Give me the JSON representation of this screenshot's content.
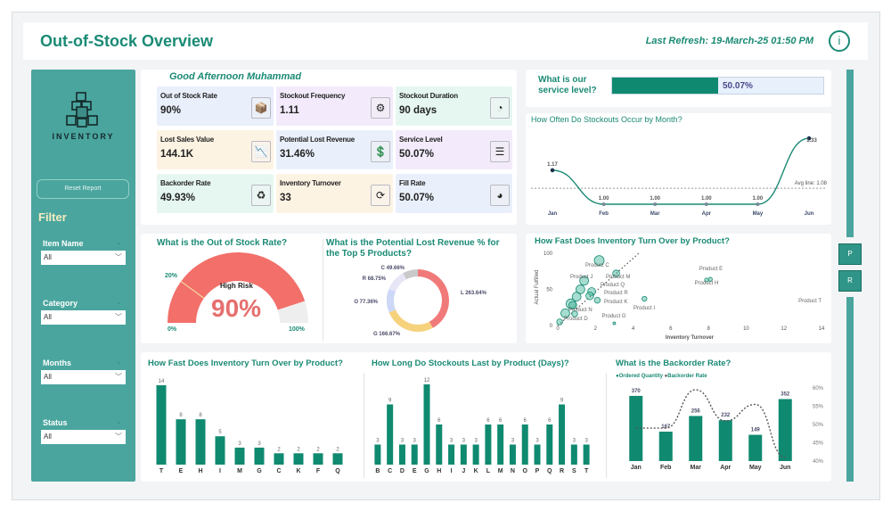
{
  "header": {
    "title": "Out-of-Stock Overview",
    "last_refresh": "Last Refresh: 19-March-25 01:50 PM",
    "info_icon": "i"
  },
  "sidebar": {
    "logo_text": "INVENTORY",
    "reset_label": "Reset Report",
    "filter_heading": "Filter",
    "filters": [
      {
        "label": "Item Name",
        "value": "All"
      },
      {
        "label": "Category",
        "value": "All"
      },
      {
        "label": "Months",
        "value": "All"
      },
      {
        "label": "Status",
        "value": "All"
      }
    ]
  },
  "greeting": "Good Afternoon Muhammad",
  "kpis": [
    {
      "label": "Out of Stock Rate",
      "value": "90%",
      "icon": "box-check-icon",
      "bg": "#e9effb"
    },
    {
      "label": "Stockout Frequency",
      "value": "1.11",
      "icon": "box-gear-icon",
      "bg": "#f3ebfb"
    },
    {
      "label": "Stockout Duration",
      "value": "90 days",
      "icon": "clock-refresh-icon",
      "bg": "#e6f7f1"
    },
    {
      "label": "Lost Sales Value",
      "value": "144.1K",
      "icon": "chart-down-icon",
      "bg": "#fdf3e3"
    },
    {
      "label": "Potential Lost Revenue",
      "value": "31.46%",
      "icon": "money-down-icon",
      "bg": "#eaf0fb"
    },
    {
      "label": "Service Level",
      "value": "50.07%",
      "icon": "layers-icon",
      "bg": "#f3ebfb"
    },
    {
      "label": "Backorder Rate",
      "value": "49.93%",
      "icon": "box-cycle-icon",
      "bg": "#e6f7f1"
    },
    {
      "label": "Inventory Turnover",
      "value": "33",
      "icon": "box-rotate-icon",
      "bg": "#fdf3e3"
    },
    {
      "label": "Fill Rate",
      "value": "50.07%",
      "icon": "pie-chart-icon",
      "bg": "#eaf0fb"
    }
  ],
  "service_level": {
    "title": "What is our service level?",
    "value": "50.07%",
    "fraction": 0.5007
  },
  "right_buttons": [
    "P",
    "R"
  ],
  "chart_data": [
    {
      "type": "line",
      "title": "How Often Do Stockouts Occur by Month?",
      "categories": [
        "Jan",
        "Feb",
        "Mar",
        "Apr",
        "May",
        "Jun"
      ],
      "values": [
        1.17,
        1.0,
        1.0,
        1.0,
        1.0,
        1.33
      ],
      "labels": [
        "1.17",
        "1.00",
        "1.00",
        "1.00",
        "1.00",
        "1.33"
      ],
      "avg_line": 1.08,
      "avg_label": "Avg line: 1.08",
      "color": "#1a8a74"
    },
    {
      "type": "gauge",
      "title": "What is the Out of Stock Rate?",
      "value": 90,
      "value_label": "90%",
      "status": "High Risk",
      "min_label": "0%",
      "max_label": "100%",
      "threshold": 20,
      "threshold_label": "20%",
      "color": "#f26f6a"
    },
    {
      "type": "pie",
      "title": "What is the Potential Lost Revenue % for the Top 5 Products?",
      "slices": [
        {
          "label": "L",
          "value": 263.64,
          "text": "L 263.64%",
          "color": "#f07a79"
        },
        {
          "label": "G",
          "value": 166.67,
          "text": "G 166.67%",
          "color": "#f6d27c"
        },
        {
          "label": "O",
          "value": 77.36,
          "text": "O 77.36%",
          "color": "#ccd8f6"
        },
        {
          "label": "R",
          "value": 68.75,
          "text": "R 68.75%",
          "color": "#e6e6f6"
        },
        {
          "label": "C",
          "value": 49.66,
          "text": "C 49.66%",
          "color": "#c9c9c9"
        }
      ]
    },
    {
      "type": "scatter",
      "title": "How Fast Does Inventory Turn Over by Product?",
      "xlabel": "Inventory Turnover",
      "ylabel": "Actual Fulfilled",
      "xlim": [
        0,
        14
      ],
      "ylim": [
        0,
        100
      ],
      "xticks": [
        0,
        2,
        4,
        6,
        8,
        10,
        12,
        14
      ],
      "yticks": [
        0,
        50,
        100
      ],
      "points": [
        {
          "label": "Product C",
          "x": 2.2,
          "y": 90,
          "size": 10
        },
        {
          "label": "Product M",
          "x": 3.1,
          "y": 72,
          "size": 7
        },
        {
          "label": "Product J",
          "x": 1.4,
          "y": 62,
          "size": 9
        },
        {
          "label": "Product P",
          "x": 1.2,
          "y": 50,
          "size": 9
        },
        {
          "label": "Product Q",
          "x": 1.8,
          "y": 47,
          "size": 8
        },
        {
          "label": "Product R",
          "x": 1.7,
          "y": 41,
          "size": 8
        },
        {
          "label": "Product K",
          "x": 2.1,
          "y": 35,
          "size": 6
        },
        {
          "label": "Product I",
          "x": 4.6,
          "y": 37,
          "size": 5
        },
        {
          "label": "Product E",
          "x": 8.1,
          "y": 64,
          "size": 4
        },
        {
          "label": "Product H",
          "x": 7.9,
          "y": 63,
          "size": 4
        },
        {
          "label": "Product O",
          "x": 1.0,
          "y": 40,
          "size": 9
        },
        {
          "label": "Product L",
          "x": 0.7,
          "y": 30,
          "size": 10
        },
        {
          "label": "Product B",
          "x": 0.8,
          "y": 28,
          "size": 8
        },
        {
          "label": "Product N",
          "x": 0.9,
          "y": 16,
          "size": 6
        },
        {
          "label": "Product S",
          "x": 0.4,
          "y": 17,
          "size": 9
        },
        {
          "label": "Product D",
          "x": 0.1,
          "y": 5,
          "size": 6
        },
        {
          "label": "Product G",
          "x": 3.0,
          "y": 3,
          "size": 2
        },
        {
          "label": "Product T",
          "x": 14,
          "y": 28,
          "size": 1
        }
      ],
      "trend": {
        "from": [
          0,
          0
        ],
        "to": [
          4.3,
          100
        ]
      }
    },
    {
      "type": "bar",
      "title": "How Fast Does Inventory Turn Over by Product?",
      "categories": [
        "T",
        "E",
        "H",
        "I",
        "M",
        "G",
        "C",
        "K",
        "F",
        "Q"
      ],
      "values": [
        14,
        8,
        8,
        5,
        3,
        3,
        2,
        2,
        2,
        2
      ],
      "color": "#0f8a70"
    },
    {
      "type": "bar",
      "title": "How Long Do Stockouts Last by Product (Days)?",
      "categories": [
        "B",
        "C",
        "D",
        "E",
        "G",
        "H",
        "I",
        "J",
        "K",
        "L",
        "M",
        "N",
        "O",
        "P",
        "Q",
        "R",
        "S",
        "T"
      ],
      "values": [
        3,
        9,
        3,
        3,
        12,
        6,
        3,
        3,
        3,
        6,
        6,
        3,
        6,
        3,
        6,
        9,
        3,
        3
      ],
      "color": "#0f8a70"
    },
    {
      "type": "bar+line",
      "title": "What is the Backorder Rate?",
      "categories": [
        "Jan",
        "Feb",
        "Mar",
        "Apr",
        "May",
        "Jun"
      ],
      "series": [
        {
          "name": "Ordered Quantity",
          "values": [
            370,
            167,
            256,
            232,
            149,
            352
          ],
          "color": "#0f8a70"
        },
        {
          "name": "Backorder Rate",
          "values": [
            49,
            49,
            59.5,
            51,
            55.5,
            41
          ],
          "color": "#555555",
          "axis": "right"
        }
      ],
      "right_axis_ticks": [
        "60%",
        "55%",
        "50%",
        "45%",
        "40%"
      ],
      "right_ylim": [
        40,
        60
      ]
    }
  ]
}
